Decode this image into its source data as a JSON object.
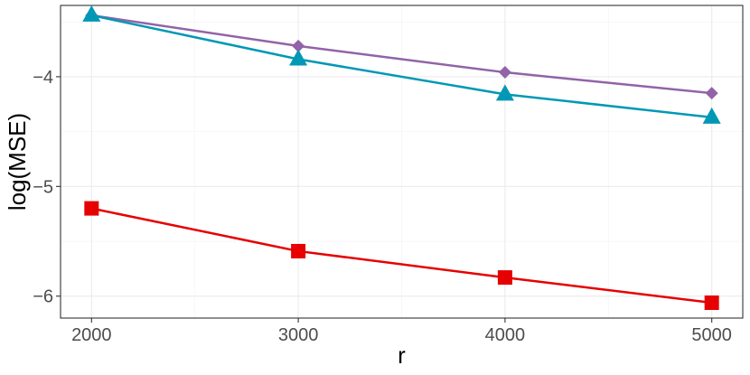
{
  "chart_data": {
    "type": "line",
    "xlabel": "r",
    "ylabel": "log(MSE)",
    "x": [
      2000,
      3000,
      4000,
      5000
    ],
    "xlim": [
      1850,
      5150
    ],
    "ylim": [
      -6.2,
      -3.35
    ],
    "x_ticks": [
      2000,
      3000,
      4000,
      5000
    ],
    "x_tick_labels": [
      "2000",
      "3000",
      "4000",
      "5000"
    ],
    "y_ticks": [
      -4,
      -5,
      -6
    ],
    "y_tick_labels": [
      "−4",
      "−5",
      "−6"
    ],
    "grid": true,
    "legend": "none",
    "series": [
      {
        "color": "#9263A8",
        "marker": "diamond",
        "values": [
          -3.44,
          -3.72,
          -3.96,
          -4.15
        ]
      },
      {
        "color": "#0098B5",
        "marker": "triangle",
        "values": [
          -3.44,
          -3.84,
          -4.16,
          -4.37
        ]
      },
      {
        "color": "#E60000",
        "marker": "square",
        "values": [
          -5.2,
          -5.59,
          -5.83,
          -6.06
        ]
      }
    ]
  }
}
